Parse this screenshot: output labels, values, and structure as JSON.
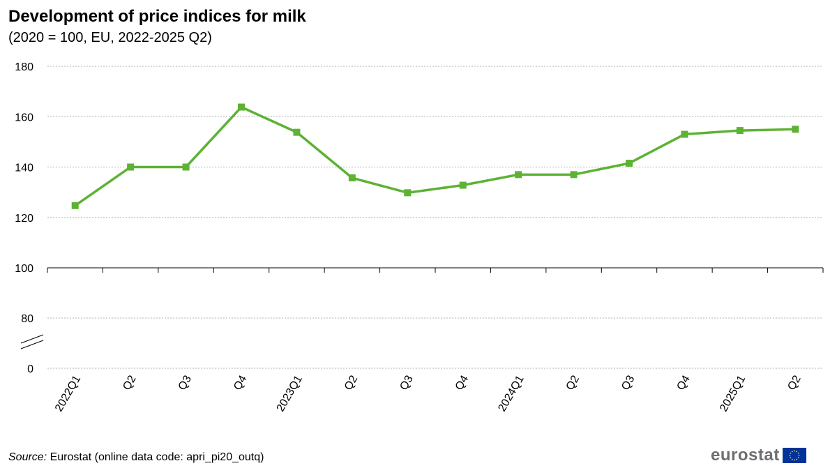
{
  "title": "Development of price indices for milk",
  "subtitle": "(2020 = 100, EU, 2022-2025 Q2)",
  "source": {
    "lead": "Source:",
    "text": " Eurostat (online data code: apri_pi20_outq)"
  },
  "logo": {
    "text": "eurostat",
    "flag_icon": "eu-flag-icon",
    "colors": {
      "text": "#6d6e71",
      "flag": "#003399",
      "stars": "#ffcc00"
    }
  },
  "chart_data": {
    "type": "line",
    "categories": [
      "2022Q1",
      "Q2",
      "Q3",
      "Q4",
      "2023Q1",
      "Q2",
      "Q3",
      "Q4",
      "2024Q1",
      "Q2",
      "Q3",
      "Q4",
      "2025Q1",
      "Q2"
    ],
    "series": [
      {
        "values": [
          124.7,
          140.0,
          140.0,
          163.8,
          153.8,
          135.7,
          129.8,
          132.8,
          137.0,
          137.0,
          141.5,
          153.0,
          154.5,
          155.0
        ],
        "color": "#5db234"
      }
    ],
    "y_ticks": [
      0,
      80,
      100,
      120,
      140,
      160,
      180
    ],
    "ylim": [
      80,
      180
    ],
    "axis_break": "between 0 and 80",
    "grid": true,
    "legend": "none"
  }
}
